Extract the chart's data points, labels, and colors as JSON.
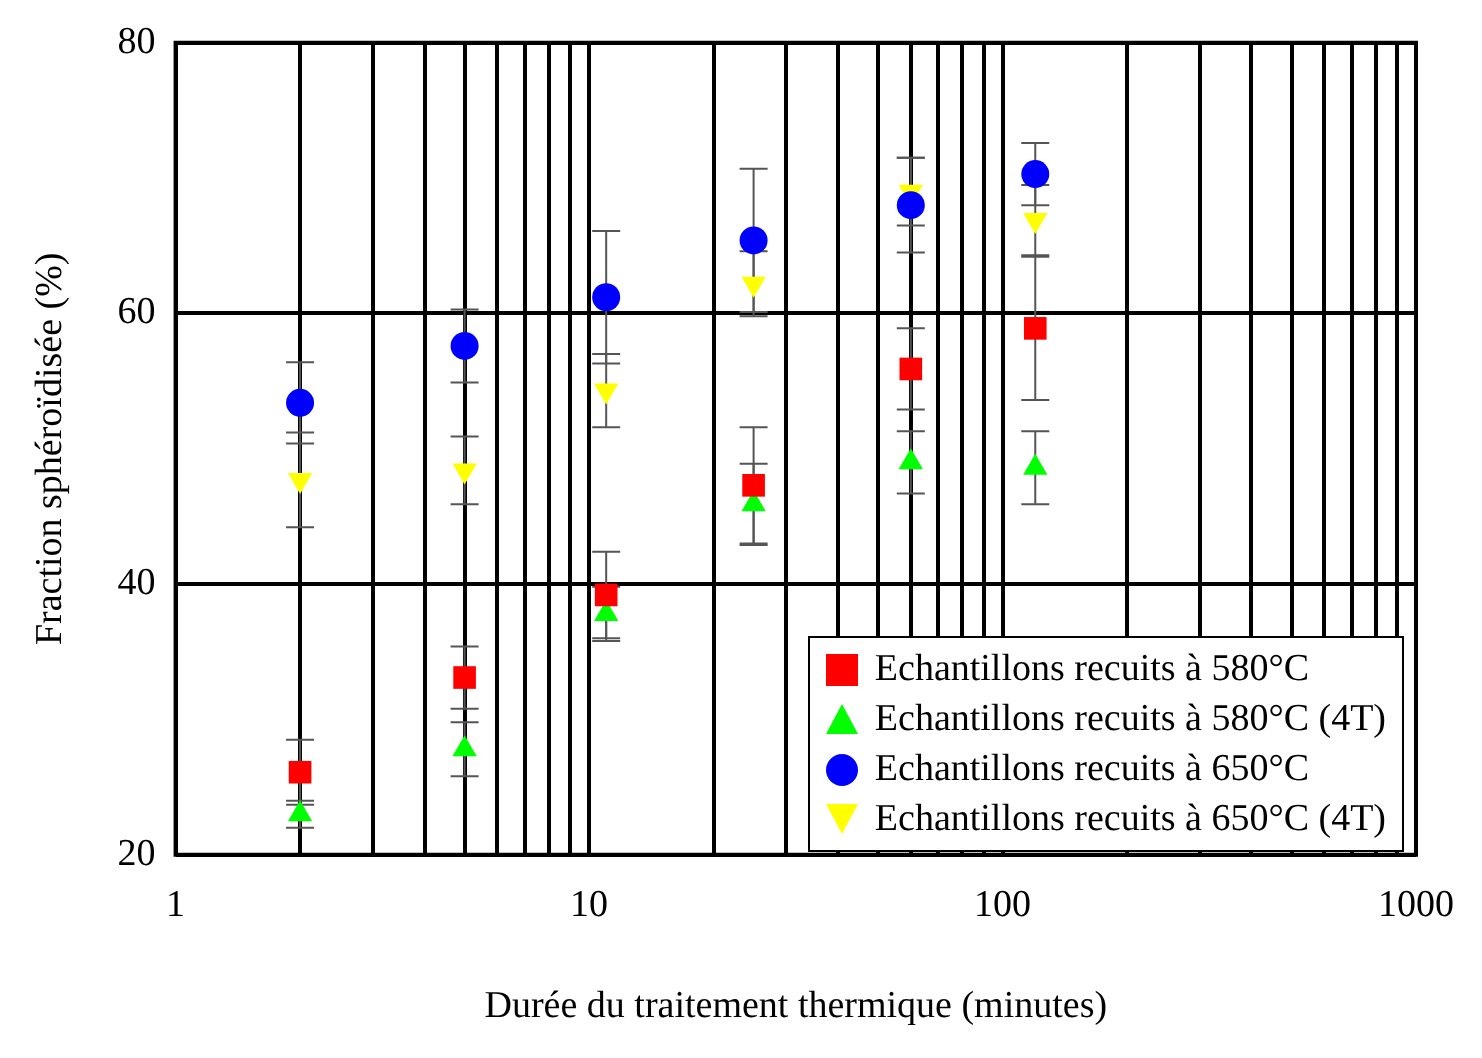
{
  "chart_data": {
    "type": "scatter",
    "xlabel": "Durée du traitement thermique (minutes)",
    "ylabel": "Fraction sphéroïdisée (%)",
    "log": "x",
    "grid": true,
    "legend": "bottom right",
    "xlim": [
      1,
      1000
    ],
    "ylim": [
      20,
      80
    ],
    "xticks": [
      1,
      {
        "value": 2,
        "label": null
      },
      {
        "value": 3,
        "label": null
      },
      {
        "value": 4,
        "label": null
      },
      {
        "value": 5,
        "label": null
      },
      {
        "value": 6,
        "label": null
      },
      {
        "value": 7,
        "label": null
      },
      {
        "value": 8,
        "label": null
      },
      {
        "value": 9,
        "label": null
      },
      10,
      {
        "value": 20,
        "label": null
      },
      {
        "value": 30,
        "label": null
      },
      {
        "value": 40,
        "label": null
      },
      {
        "value": 50,
        "label": null
      },
      {
        "value": 60,
        "label": null
      },
      {
        "value": 70,
        "label": null
      },
      {
        "value": 80,
        "label": null
      },
      {
        "value": 90,
        "label": null
      },
      100,
      {
        "value": 200,
        "label": null
      },
      {
        "value": 300,
        "label": null
      },
      {
        "value": 400,
        "label": null
      },
      {
        "value": 500,
        "label": null
      },
      {
        "value": 600,
        "label": null
      },
      {
        "value": 700,
        "label": null
      },
      {
        "value": 800,
        "label": null
      },
      {
        "value": 900,
        "label": null
      },
      1000
    ],
    "yticks": [
      20,
      40,
      60,
      80
    ],
    "x": [
      2,
      5,
      11,
      25,
      60,
      120
    ],
    "series": [
      {
        "name": "Echantillons recuits à 580°C",
        "color": "#ff0000",
        "marker": "square",
        "values": [
          26.1,
          33.1,
          39.2,
          47.3,
          55.9,
          58.9
        ],
        "errors": [
          2.4,
          2.3,
          3.2,
          4.3,
          3,
          5.3
        ]
      },
      {
        "name": "Echantillons recuits à 580°C (4T)",
        "color": "#00ff00",
        "marker": "triangle",
        "values": [
          23,
          27.8,
          37.8,
          45.9,
          49,
          48.6
        ],
        "errors": [
          1,
          2,
          2,
          3,
          2.3,
          2.7
        ]
      },
      {
        "name": "Echantillons recuits à 650°C",
        "color": "#0000ff",
        "marker": "circle",
        "values": [
          53.4,
          57.6,
          61.2,
          65.4,
          68,
          70.3
        ],
        "errors": [
          3,
          2.7,
          4.9,
          5.3,
          3.5,
          2.3
        ]
      },
      {
        "name": "Echantillons recuits à 650°C (4T)",
        "color": "#ffff00",
        "marker": "triangle-down",
        "values": [
          47.7,
          48.4,
          54.3,
          62.2,
          69,
          66.9
        ],
        "errors": [
          3.5,
          2.5,
          2.7,
          2.4,
          2.5,
          2.6
        ]
      }
    ]
  }
}
